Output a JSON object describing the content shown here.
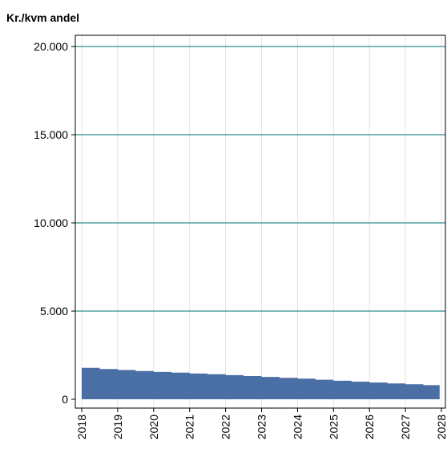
{
  "chart_data": {
    "type": "area",
    "title": "Kr./kvm andel",
    "xlabel": "",
    "ylabel": "",
    "x_ticks": [
      "2018",
      "2019",
      "2020",
      "2021",
      "2022",
      "2023",
      "2024",
      "2025",
      "2026",
      "2027",
      "2028"
    ],
    "y_ticks": [
      {
        "value": 0,
        "label": "0"
      },
      {
        "value": 5000,
        "label": "5.000"
      },
      {
        "value": 10000,
        "label": "10.000"
      },
      {
        "value": 15000,
        "label": "15.000"
      },
      {
        "value": 20000,
        "label": "20.000"
      }
    ],
    "xlim": [
      2018,
      2028.1
    ],
    "ylim": [
      -500,
      20700
    ],
    "grid": true,
    "colors": {
      "area": "#4a6fa5",
      "major_grid": "#2f8e90",
      "minor_grid": "#e3e3e3",
      "axis": "#000000"
    },
    "series": [
      {
        "x": [
          2018,
          2018.5,
          2019,
          2019.5,
          2020,
          2020.5,
          2021,
          2021.5,
          2022,
          2022.5,
          2023,
          2023.5,
          2024,
          2024.5,
          2025,
          2025.5,
          2026,
          2026.5,
          2027,
          2027.5,
          2027.95
        ],
        "values": [
          1780,
          1720,
          1660,
          1600,
          1550,
          1510,
          1460,
          1420,
          1370,
          1320,
          1270,
          1220,
          1170,
          1110,
          1050,
          1000,
          950,
          900,
          850,
          800,
          750
        ]
      }
    ]
  }
}
